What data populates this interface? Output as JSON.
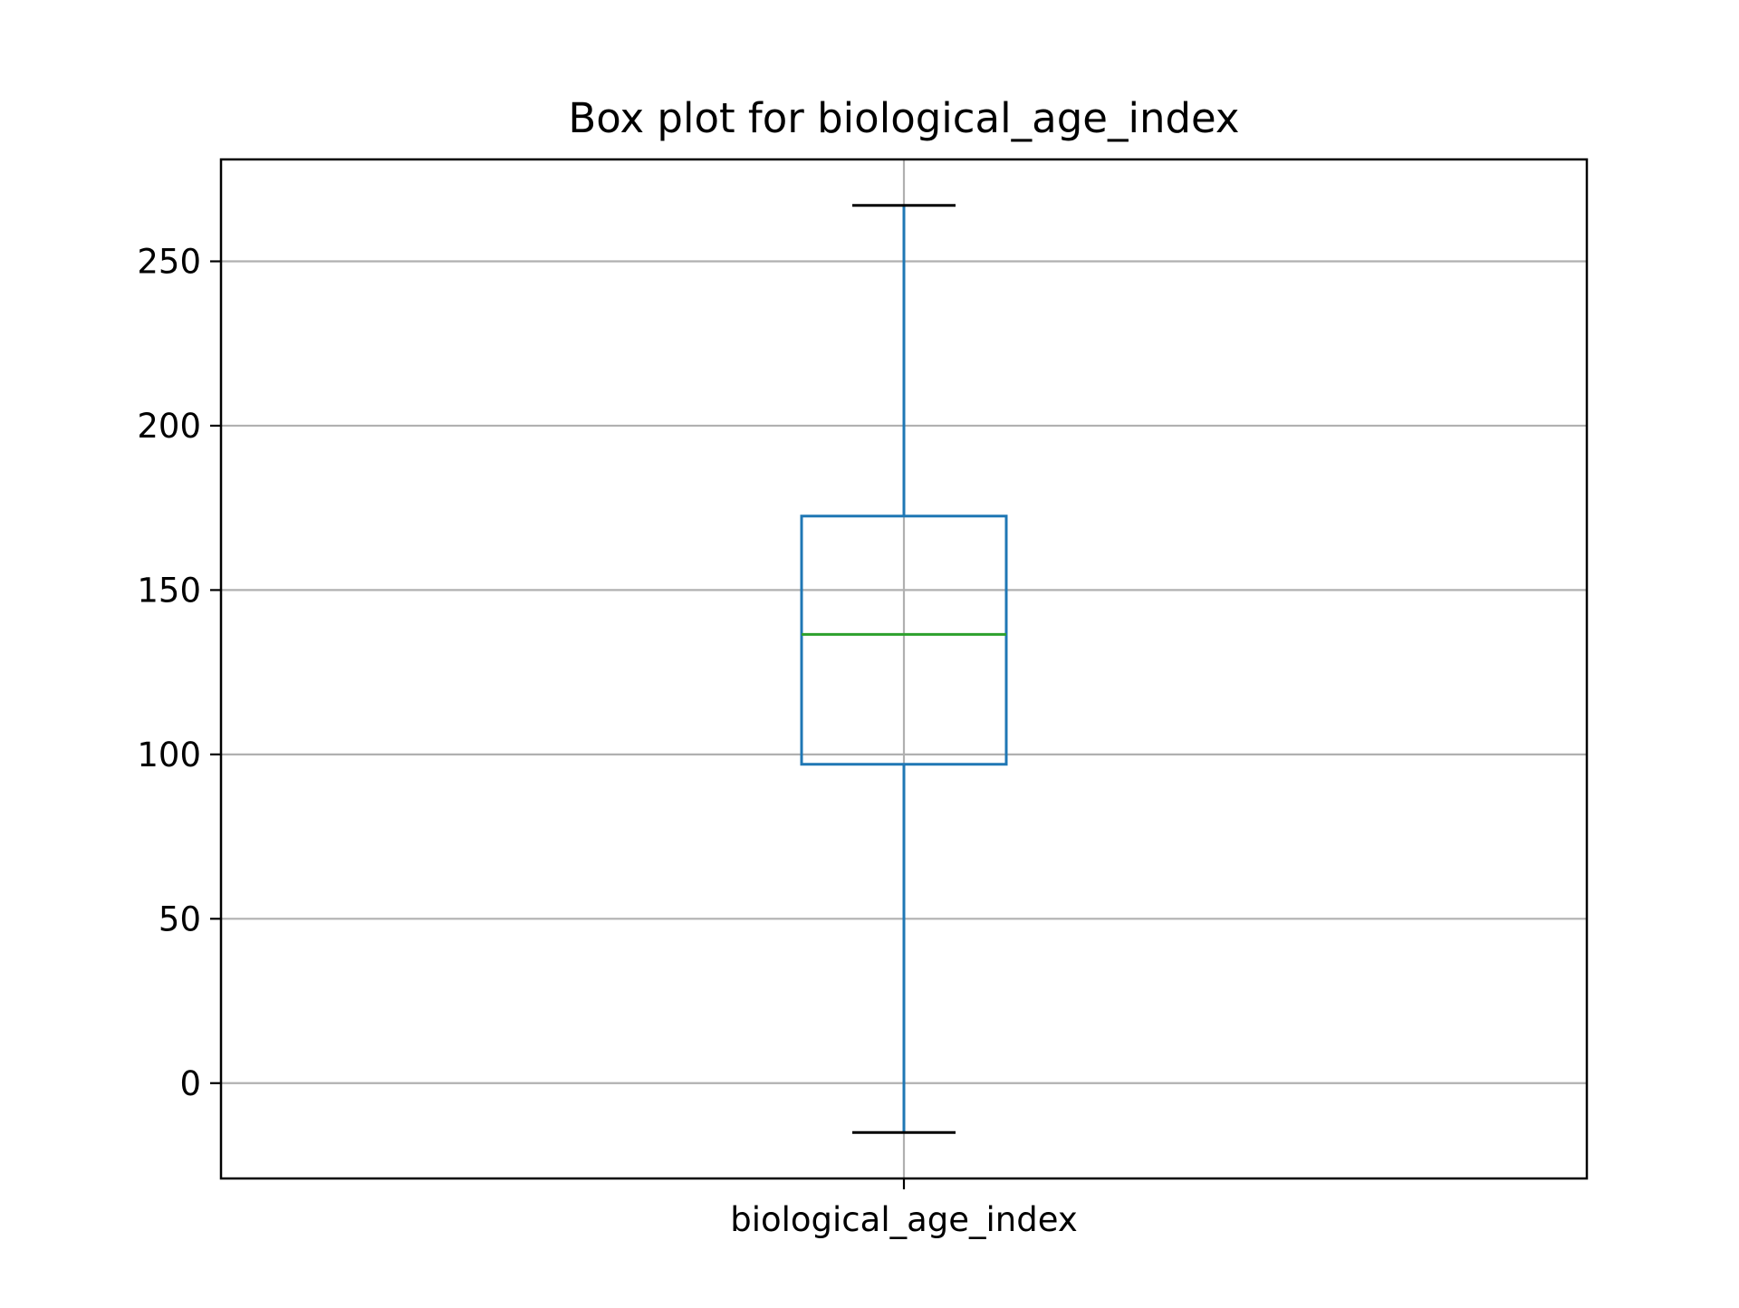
{
  "chart_data": {
    "type": "box",
    "title": "Box plot for biological_age_index",
    "xlabel": "",
    "ylabel": "",
    "categories": [
      "biological_age_index"
    ],
    "boxes": [
      {
        "category": "biological_age_index",
        "whisker_low": -15,
        "q1": 97,
        "median": 136.5,
        "q3": 172.5,
        "whisker_high": 267
      }
    ],
    "yticks": [
      0,
      50,
      100,
      150,
      200,
      250
    ],
    "ylim": [
      -29,
      281
    ],
    "grid": true,
    "colors": {
      "box": "#1f77b4",
      "median": "#2ca02c",
      "caps": "#000000",
      "grid": "#b0b0b0"
    }
  }
}
